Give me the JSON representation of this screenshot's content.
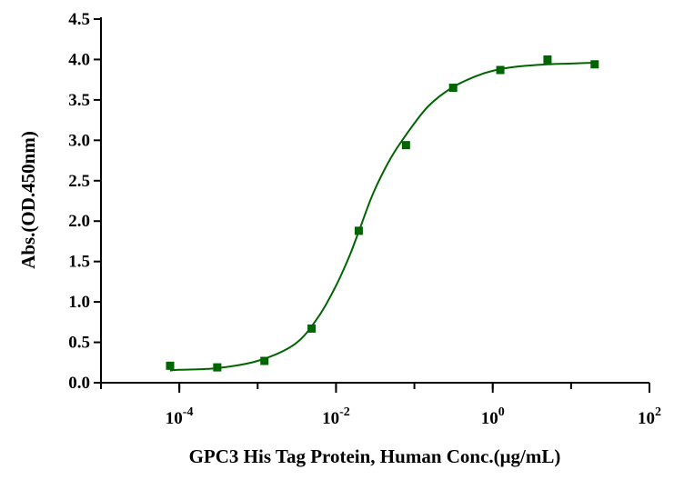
{
  "chart_data": {
    "type": "scatter",
    "title": "",
    "xlabel": "GPC3 His Tag Protein, Human  Conc.(μg/mL)",
    "ylabel": "Abs.(OD.450nm)",
    "x_scale": "log",
    "xlim": [
      1e-05,
      100
    ],
    "ylim": [
      0,
      4.5
    ],
    "x_ticks": [
      {
        "value": 0.0001,
        "base": "10",
        "exp": "-4"
      },
      {
        "value": 0.01,
        "base": "10",
        "exp": "-2"
      },
      {
        "value": 1,
        "base": "10",
        "exp": "0"
      },
      {
        "value": 100,
        "base": "10",
        "exp": "2"
      }
    ],
    "y_ticks": [
      {
        "value": 0,
        "label": "0.0"
      },
      {
        "value": 0.5,
        "label": "0.5"
      },
      {
        "value": 1,
        "label": "1.0"
      },
      {
        "value": 1.5,
        "label": "1.5"
      },
      {
        "value": 2,
        "label": "2.0"
      },
      {
        "value": 2.5,
        "label": "2.5"
      },
      {
        "value": 3,
        "label": "3.0"
      },
      {
        "value": 3.5,
        "label": "3.5"
      },
      {
        "value": 4,
        "label": "4.0"
      },
      {
        "value": 4.5,
        "label": "4.5"
      }
    ],
    "grid": false,
    "series": [
      {
        "color": "#006400",
        "marker": "square",
        "fit": "4PL sigmoid",
        "points": [
          {
            "x": 7.63e-05,
            "y": 0.21
          },
          {
            "x": 0.000305,
            "y": 0.19
          },
          {
            "x": 0.00122,
            "y": 0.27
          },
          {
            "x": 0.00488,
            "y": 0.67
          },
          {
            "x": 0.0195,
            "y": 1.88
          },
          {
            "x": 0.0781,
            "y": 2.94
          },
          {
            "x": 0.3125,
            "y": 3.65
          },
          {
            "x": 1.25,
            "y": 3.87
          },
          {
            "x": 5,
            "y": 4.0
          },
          {
            "x": 20,
            "y": 3.94
          }
        ],
        "curve": [
          {
            "x": 7.63e-05,
            "y": 0.15
          },
          {
            "x": 0.0001,
            "y": 0.16
          },
          {
            "x": 0.0003,
            "y": 0.18
          },
          {
            "x": 0.001,
            "y": 0.27
          },
          {
            "x": 0.003,
            "y": 0.48
          },
          {
            "x": 0.006,
            "y": 0.82
          },
          {
            "x": 0.01,
            "y": 1.2
          },
          {
            "x": 0.015,
            "y": 1.58
          },
          {
            "x": 0.02,
            "y": 1.9
          },
          {
            "x": 0.03,
            "y": 2.35
          },
          {
            "x": 0.05,
            "y": 2.78
          },
          {
            "x": 0.08,
            "y": 3.08
          },
          {
            "x": 0.15,
            "y": 3.42
          },
          {
            "x": 0.3,
            "y": 3.65
          },
          {
            "x": 0.6,
            "y": 3.79
          },
          {
            "x": 1,
            "y": 3.86
          },
          {
            "x": 2,
            "y": 3.91
          },
          {
            "x": 5,
            "y": 3.94
          },
          {
            "x": 10,
            "y": 3.95
          },
          {
            "x": 20,
            "y": 3.96
          }
        ]
      }
    ]
  }
}
